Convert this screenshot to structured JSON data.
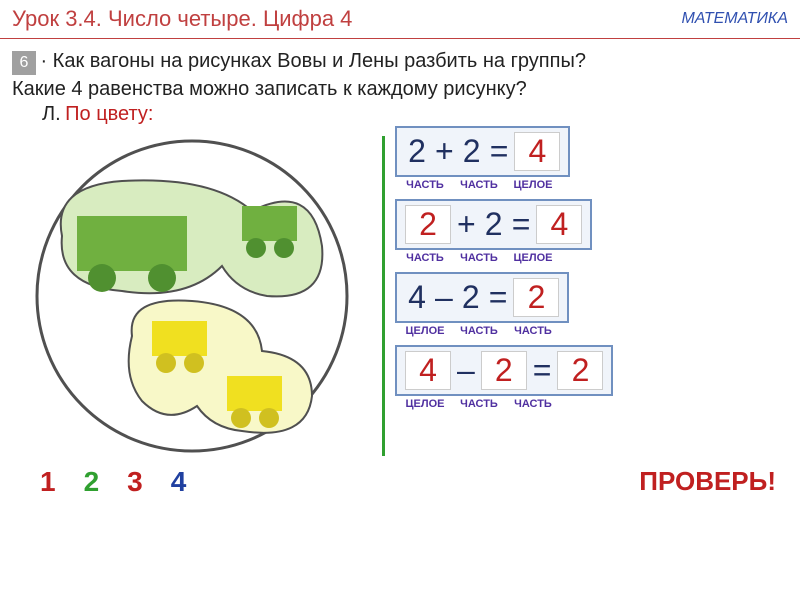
{
  "header": {
    "lesson": "Урок 3.4. Число четыре. Цифра 4",
    "subject": "МАТЕМАТИКА"
  },
  "task": {
    "number": "6",
    "line1": "· Как вагоны на рисунках Вовы и Лены разбить на группы?",
    "line2": "Какие 4 равенства можно записать к каждому рисунку?",
    "labelL": "Л.",
    "labelColor": "По цвету:"
  },
  "diagram": {
    "circle_stroke": "#505050",
    "blob1_fill": "#d8ecc0",
    "blob1_stroke": "#505050",
    "blob2_fill": "#f8f8c8",
    "blob2_stroke": "#505050",
    "wagon_green_body": "#70b040",
    "wagon_green_wheel": "#509030",
    "wagon_yellow_body": "#f0e020",
    "wagon_yellow_wheel": "#d0c020"
  },
  "equations": [
    {
      "a": "2",
      "op": "+",
      "b": "2",
      "eq": "=",
      "c": "4",
      "a_ans": false,
      "b_ans": false,
      "c_ans": true,
      "labels": [
        "ЧАСТЬ",
        "ЧАСТЬ",
        "ЦЕЛОЕ"
      ]
    },
    {
      "a": "2",
      "op": "+",
      "b": "2",
      "eq": "=",
      "c": "4",
      "a_ans": true,
      "b_ans": false,
      "c_ans": true,
      "labels": [
        "ЧАСТЬ",
        "ЧАСТЬ",
        "ЦЕЛОЕ"
      ]
    },
    {
      "a": "4",
      "op": "–",
      "b": "2",
      "eq": "=",
      "c": "2",
      "a_ans": false,
      "b_ans": false,
      "c_ans": true,
      "labels": [
        "ЦЕЛОЕ",
        "ЧАСТЬ",
        "ЧАСТЬ"
      ]
    },
    {
      "a": "4",
      "op": "–",
      "b": "2",
      "eq": "=",
      "c": "2",
      "a_ans": true,
      "b_ans": true,
      "c_ans": true,
      "labels": [
        "ЦЕЛОЕ",
        "ЧАСТЬ",
        "ЧАСТЬ"
      ]
    }
  ],
  "footer": {
    "nums": [
      {
        "v": "1",
        "c": "#c02020"
      },
      {
        "v": "2",
        "c": "#30a030"
      },
      {
        "v": "3",
        "c": "#c02020"
      },
      {
        "v": "4",
        "c": "#2040a0"
      }
    ],
    "check": "ПРОВЕРЬ!"
  }
}
